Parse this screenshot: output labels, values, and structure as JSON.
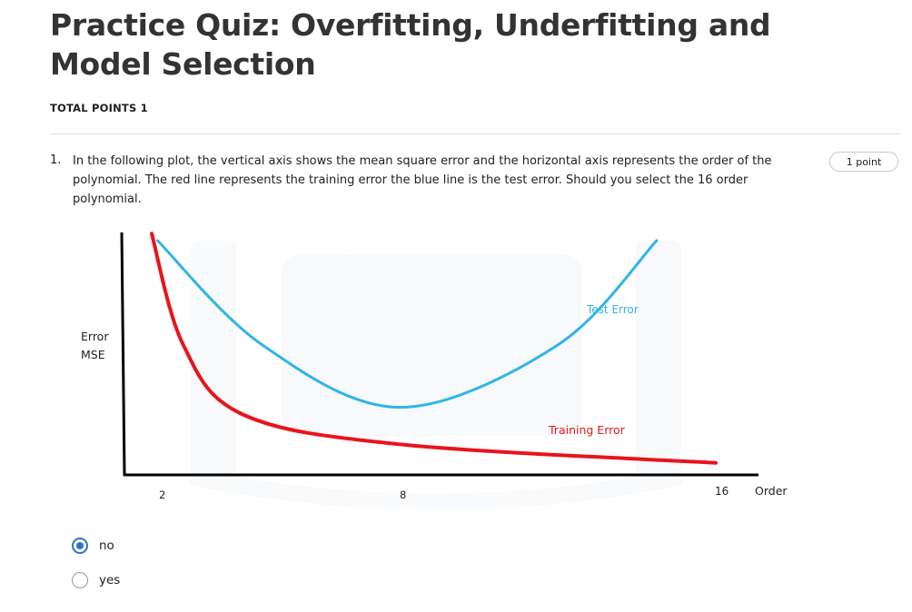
{
  "quiz": {
    "title": "Practice Quiz: Overfitting, Underfitting and Model Selection",
    "total_points": "TOTAL POINTS 1"
  },
  "question": {
    "number": "1.",
    "text": "In the following plot, the vertical axis shows the mean square error and the horizontal axis represents the order of the polynomial. The red line represents the training error the blue line is the test error. Should you select the 16 order polynomial.",
    "points": "1 point",
    "options": [
      {
        "label": "no",
        "selected": true
      },
      {
        "label": "yes",
        "selected": false
      }
    ]
  },
  "colors": {
    "training": "#e8141c",
    "test": "#2fb4ea",
    "radio_accent": "#2a73cc"
  },
  "chart_data": {
    "type": "line",
    "ylabel_line1": "Error",
    "ylabel_line2": "MSE",
    "xlabel": "Order",
    "x_ticks": [
      "2",
      "8",
      "16"
    ],
    "series": [
      {
        "name": "Test Error",
        "color": "#2fb4ea",
        "points": [
          [
            1.85,
            1.0
          ],
          [
            4.5,
            0.55
          ],
          [
            8.0,
            0.28
          ],
          [
            12.0,
            0.55
          ],
          [
            14.5,
            1.0
          ]
        ]
      },
      {
        "name": "Training Error",
        "color": "#e8141c",
        "points": [
          [
            1.7,
            1.03
          ],
          [
            2.5,
            0.55
          ],
          [
            4.0,
            0.25
          ],
          [
            8.0,
            0.12
          ],
          [
            16.0,
            0.04
          ]
        ]
      }
    ]
  }
}
